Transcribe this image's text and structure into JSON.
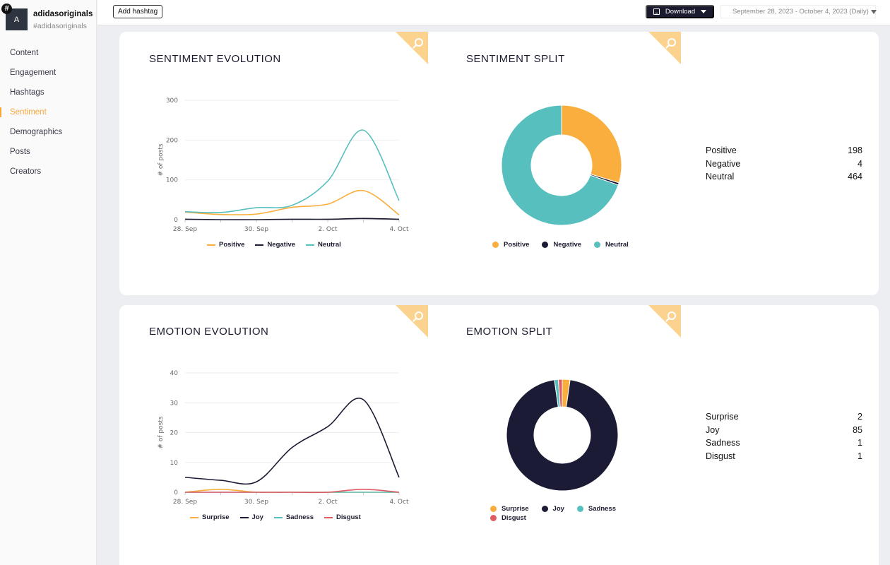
{
  "account": {
    "avatar_letter": "A",
    "badge": "#",
    "name": "adidasoriginals",
    "handle": "#adidasoriginals"
  },
  "nav": [
    "Content",
    "Engagement",
    "Hashtags",
    "Sentiment",
    "Demographics",
    "Posts",
    "Creators"
  ],
  "nav_active": "Sentiment",
  "toolbar": {
    "add_hashtag": "Add hashtag",
    "download": "Download",
    "date_range": "September 28, 2023 - October 4, 2023 (Daily)"
  },
  "icons": {
    "corner": "search-icon",
    "download": "download-icon"
  },
  "colors": {
    "positive": "#f9ae3d",
    "negative": "#1b1b35",
    "neutral": "#58bfbf",
    "disgust": "#e05c63",
    "accent": "#f6a63d",
    "corner": "#fbd28e"
  },
  "panels": {
    "sentiment_evolution": {
      "title": "SENTIMENT EVOLUTION"
    },
    "sentiment_split": {
      "title": "SENTIMENT SPLIT"
    },
    "emotion_evolution": {
      "title": "EMOTION EVOLUTION"
    },
    "emotion_split": {
      "title": "EMOTION SPLIT"
    }
  },
  "chart_data": [
    {
      "id": "sentiment_evolution",
      "type": "line",
      "x": [
        "28. Sep",
        "29. Sep",
        "30. Sep",
        "1. Oct",
        "2. Oct",
        "3. Oct",
        "4. Oct"
      ],
      "xticks": [
        "28. Sep",
        "30. Sep",
        "2. Oct",
        "4. Oct"
      ],
      "ylabel": "# of posts",
      "ylim": [
        0,
        300
      ],
      "yticks": [
        0,
        100,
        200,
        300
      ],
      "grid": true,
      "legend": "bottom",
      "series": [
        {
          "name": "Positive",
          "color": "#f9ae3d",
          "values": [
            19,
            13,
            14,
            31,
            39,
            73,
            12
          ]
        },
        {
          "name": "Negative",
          "color": "#1b1b35",
          "values": [
            1,
            0,
            0,
            1,
            1,
            3,
            1
          ]
        },
        {
          "name": "Neutral",
          "color": "#58bfbf",
          "values": [
            20,
            18,
            30,
            36,
            97,
            225,
            48
          ]
        }
      ]
    },
    {
      "id": "sentiment_split",
      "type": "pie",
      "donut": true,
      "legend": "bottom",
      "slices": [
        {
          "name": "Positive",
          "value": 198,
          "color": "#f9ae3d"
        },
        {
          "name": "Negative",
          "value": 4,
          "color": "#1b1b35"
        },
        {
          "name": "Neutral",
          "value": 464,
          "color": "#58bfbf"
        }
      ]
    },
    {
      "id": "emotion_evolution",
      "type": "line",
      "x": [
        "28. Sep",
        "29. Sep",
        "30. Sep",
        "1. Oct",
        "2. Oct",
        "3. Oct",
        "4. Oct"
      ],
      "xticks": [
        "28. Sep",
        "30. Sep",
        "2. Oct",
        "4. Oct"
      ],
      "ylabel": "# of posts",
      "ylim": [
        0,
        40
      ],
      "yticks": [
        0,
        10,
        20,
        30,
        40
      ],
      "grid": true,
      "legend": "bottom",
      "series": [
        {
          "name": "Surprise",
          "color": "#f9ae3d",
          "values": [
            0,
            1,
            0,
            0,
            0,
            0,
            0
          ]
        },
        {
          "name": "Joy",
          "color": "#1b1b35",
          "values": [
            5,
            4,
            3.5,
            15,
            22,
            31,
            5
          ]
        },
        {
          "name": "Sadness",
          "color": "#58bfbf",
          "values": [
            0,
            0,
            0,
            0,
            0,
            0,
            0
          ]
        },
        {
          "name": "Disgust",
          "color": "#e05c63",
          "values": [
            0,
            0,
            0,
            0,
            0,
            1,
            0
          ]
        }
      ]
    },
    {
      "id": "emotion_split",
      "type": "pie",
      "donut": true,
      "legend": "bottom",
      "slices": [
        {
          "name": "Surprise",
          "value": 2,
          "color": "#f9ae3d"
        },
        {
          "name": "Joy",
          "value": 85,
          "color": "#1b1b35"
        },
        {
          "name": "Sadness",
          "value": 1,
          "color": "#58bfbf"
        },
        {
          "name": "Disgust",
          "value": 1,
          "color": "#e05c63"
        }
      ]
    }
  ]
}
